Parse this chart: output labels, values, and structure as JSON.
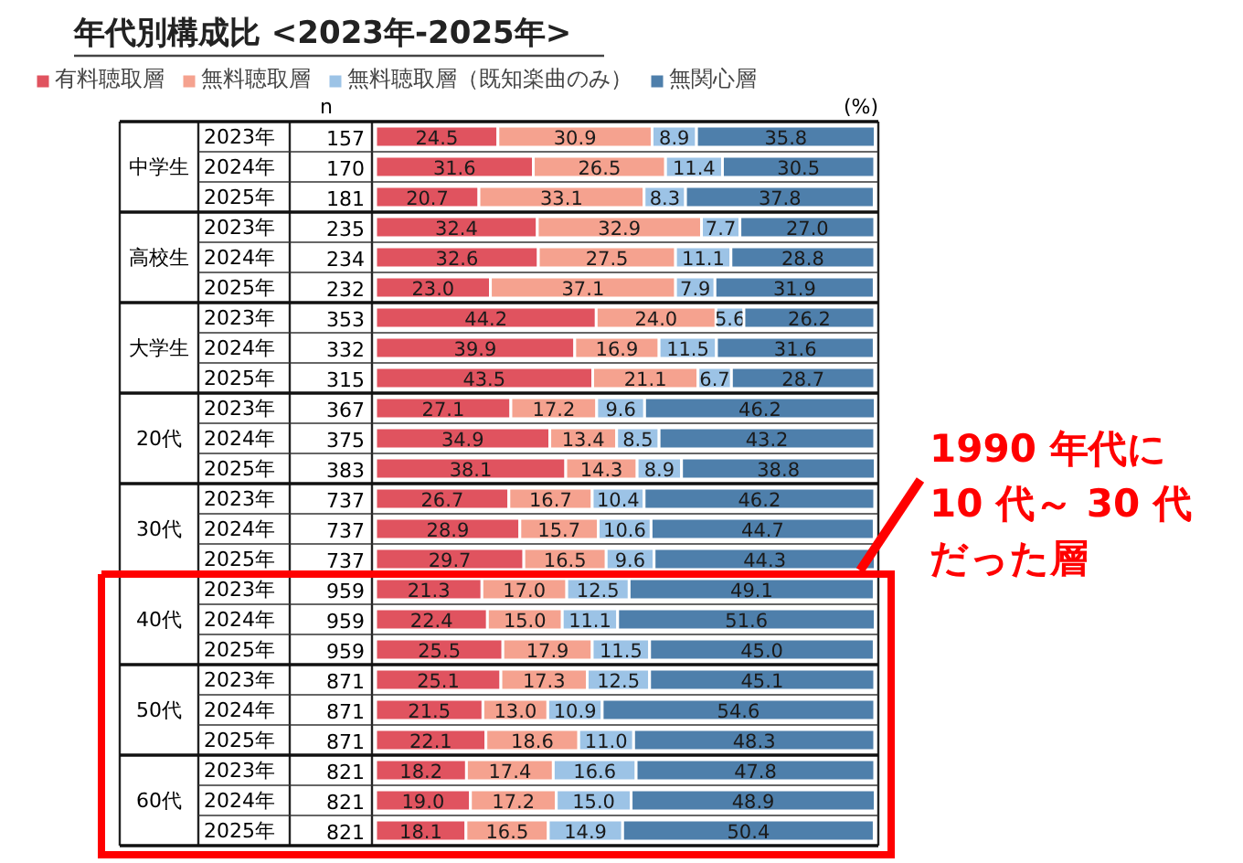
{
  "chart_data": {
    "type": "bar",
    "orientation": "horizontal",
    "stacked": true,
    "legend": "top left",
    "grid": false,
    "title": "年代別構成比 <2023年-2025年>",
    "categories": [
      "2023年",
      "2024年",
      "2025年",
      "2023年",
      "2024年",
      "2025年",
      "2023年",
      "2024年",
      "2025年",
      "2023年",
      "2024年",
      "2025年",
      "2023年",
      "2024年",
      "2025年",
      "2023年",
      "2024年",
      "2025年",
      "2023年",
      "2024年",
      "2025年",
      "2023年",
      "2024年",
      "2025年"
    ],
    "series": [
      {
        "name": "有料聴取層",
        "color": "#e0535f",
        "values": [
          24.5,
          31.6,
          20.7,
          32.4,
          32.6,
          23.0,
          44.2,
          39.9,
          43.5,
          27.1,
          34.9,
          38.1,
          26.7,
          28.9,
          29.7,
          21.3,
          22.4,
          25.5,
          25.1,
          21.5,
          22.1,
          18.2,
          19.0,
          18.1
        ],
        "value_labels": [
          "24.5",
          "31.6",
          "20.7",
          "32.4",
          "32.6",
          "23.0",
          "44.2",
          "39.9",
          "43.5",
          "27.1",
          "34.9",
          "38.1",
          "26.7",
          "28.9",
          "29.7",
          "21.3",
          "22.4",
          "25.5",
          "25.1",
          "21.5",
          "22.1",
          "18.2",
          "19.0",
          "18.1"
        ]
      },
      {
        "name": "無料聴取層",
        "color": "#f5a28f",
        "values": [
          30.9,
          26.5,
          33.1,
          32.9,
          27.5,
          37.1,
          24.0,
          16.9,
          21.1,
          17.2,
          13.4,
          14.3,
          16.7,
          15.7,
          16.5,
          17.0,
          15.0,
          17.9,
          17.3,
          13.0,
          18.6,
          17.4,
          17.2,
          16.5
        ],
        "value_labels": [
          "30.9",
          "26.5",
          "33.1",
          "32.9",
          "27.5",
          "37.1",
          "24.0",
          "16.9",
          "21.1",
          "17.2",
          "13.4",
          "14.3",
          "16.7",
          "15.7",
          "16.5",
          "17.0",
          "15.0",
          "17.9",
          "17.3",
          "13.0",
          "18.6",
          "17.4",
          "17.2",
          "16.5"
        ]
      },
      {
        "name": "無料聴取層（既知楽曲のみ）",
        "color": "#9cc3e6",
        "values": [
          8.9,
          11.4,
          8.3,
          7.7,
          11.1,
          7.9,
          5.6,
          11.5,
          6.7,
          9.6,
          8.5,
          8.9,
          10.4,
          10.6,
          9.6,
          12.5,
          11.1,
          11.5,
          12.5,
          10.9,
          11.0,
          16.6,
          15.0,
          14.9
        ],
        "value_labels": [
          "8.9",
          "11.4",
          "8.3",
          "7.7",
          "11.1",
          "7.9",
          "5.6",
          "11.5",
          "6.7",
          "9.6",
          "8.5",
          "8.9",
          "10.4",
          "10.6",
          "9.6",
          "12.5",
          "11.1",
          "11.5",
          "12.5",
          "10.9",
          "11.0",
          "16.6",
          "15.0",
          "14.9"
        ]
      },
      {
        "name": "無関心層",
        "color": "#4e7fab",
        "values": [
          35.8,
          30.5,
          37.8,
          27.0,
          28.8,
          31.9,
          26.2,
          31.6,
          28.7,
          46.2,
          43.2,
          38.8,
          46.2,
          44.7,
          44.3,
          49.1,
          51.6,
          45.0,
          45.1,
          54.6,
          48.3,
          47.8,
          48.9,
          50.4
        ],
        "value_labels": [
          "35.8",
          "30.5",
          "37.8",
          "27.0",
          "28.8",
          "31.9",
          "26.2",
          "31.6",
          "28.7",
          "46.2",
          "43.2",
          "38.8",
          "46.2",
          "44.7",
          "44.3",
          "49.1",
          "51.6",
          "45.0",
          "45.1",
          "54.6",
          "48.3",
          "47.8",
          "48.9",
          "50.4"
        ]
      }
    ],
    "annotations": [
      "n",
      "(%)",
      "中学生",
      "高校生",
      "大学生",
      "20代",
      "30代",
      "40代",
      "50代",
      "60代",
      "157",
      "170",
      "181",
      "235",
      "234",
      "232",
      "353",
      "332",
      "315",
      "367",
      "375",
      "383",
      "737",
      "737",
      "737",
      "959",
      "959",
      "959",
      "871",
      "871",
      "871",
      "821",
      "821",
      "821",
      "1990 年代に",
      "10 代～ 30 代",
      "だった層"
    ]
  }
}
